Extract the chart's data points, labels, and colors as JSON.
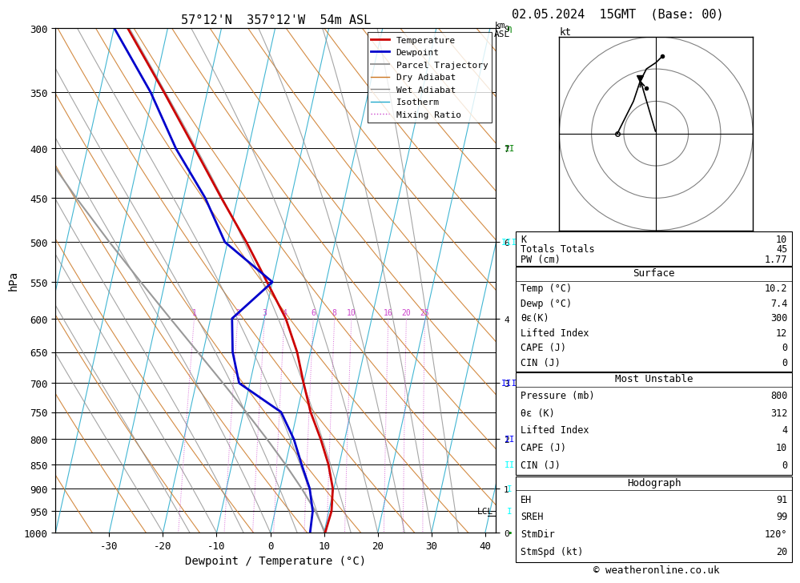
{
  "title_left": "57°12'N  357°12'W  54m ASL",
  "title_right": "02.05.2024  15GMT  (Base: 00)",
  "xlabel": "Dewpoint / Temperature (°C)",
  "ylabel_left": "hPa",
  "pressure_levels": [
    300,
    350,
    400,
    450,
    500,
    550,
    600,
    650,
    700,
    750,
    800,
    850,
    900,
    950,
    1000
  ],
  "temp_range": [
    -40,
    42
  ],
  "temp_ticks": [
    -30,
    -20,
    -10,
    0,
    10,
    20,
    30,
    40
  ],
  "mixing_ratio_labels": [
    1,
    2,
    3,
    4,
    6,
    8,
    10,
    16,
    20,
    25
  ],
  "temperature_profile": {
    "pressure": [
      1000,
      950,
      900,
      850,
      800,
      750,
      700,
      650,
      600,
      550,
      500,
      450,
      400,
      350,
      300
    ],
    "temp": [
      10.2,
      10.5,
      9.8,
      8.0,
      5.5,
      2.5,
      0.0,
      -2.5,
      -6.0,
      -11.0,
      -16.5,
      -23.0,
      -30.0,
      -38.0,
      -47.5
    ]
  },
  "dewpoint_profile": {
    "pressure": [
      1000,
      950,
      900,
      850,
      800,
      750,
      700,
      650,
      600,
      550,
      500,
      450,
      400,
      350,
      300
    ],
    "dewp": [
      7.4,
      7.0,
      5.5,
      3.0,
      0.5,
      -3.0,
      -12.0,
      -14.5,
      -16.0,
      -10.0,
      -20.5,
      -26.0,
      -33.5,
      -40.5,
      -50.0
    ]
  },
  "parcel_trajectory": {
    "pressure": [
      1000,
      950,
      900,
      850,
      800,
      750,
      700,
      650,
      600,
      550,
      500,
      450,
      400,
      350,
      300
    ],
    "temp": [
      10.2,
      7.5,
      4.0,
      0.0,
      -4.5,
      -9.5,
      -15.0,
      -21.0,
      -27.5,
      -34.5,
      -42.0,
      -50.0,
      -58.5,
      -67.5,
      -77.0
    ]
  },
  "lcl_pressure": 960,
  "surface_data": {
    "temp_c": 10.2,
    "dewp_c": 7.4,
    "theta_e_k": 300,
    "lifted_index": 12,
    "cape_j": 0,
    "cin_j": 0
  },
  "most_unstable": {
    "pressure_mb": 800,
    "theta_e_k": 312,
    "lifted_index": 4,
    "cape_j": 10,
    "cin_j": 0
  },
  "hodograph": {
    "EH": 91,
    "SREH": 99,
    "StmDir": "120°",
    "StmSpd_kt": 20
  },
  "indices": {
    "K": 10,
    "Totals_Totals": 45,
    "PW_cm": 1.77
  },
  "colors": {
    "temperature": "#cc0000",
    "dewpoint": "#0000cc",
    "parcel": "#999999",
    "dry_adiabat": "#cc7722",
    "wet_adiabat": "#888888",
    "isotherm": "#22aacc",
    "mixing_ratio": "#cc44cc",
    "background": "#ffffff",
    "grid": "#000000"
  },
  "copyright": "© weatheronline.co.uk"
}
